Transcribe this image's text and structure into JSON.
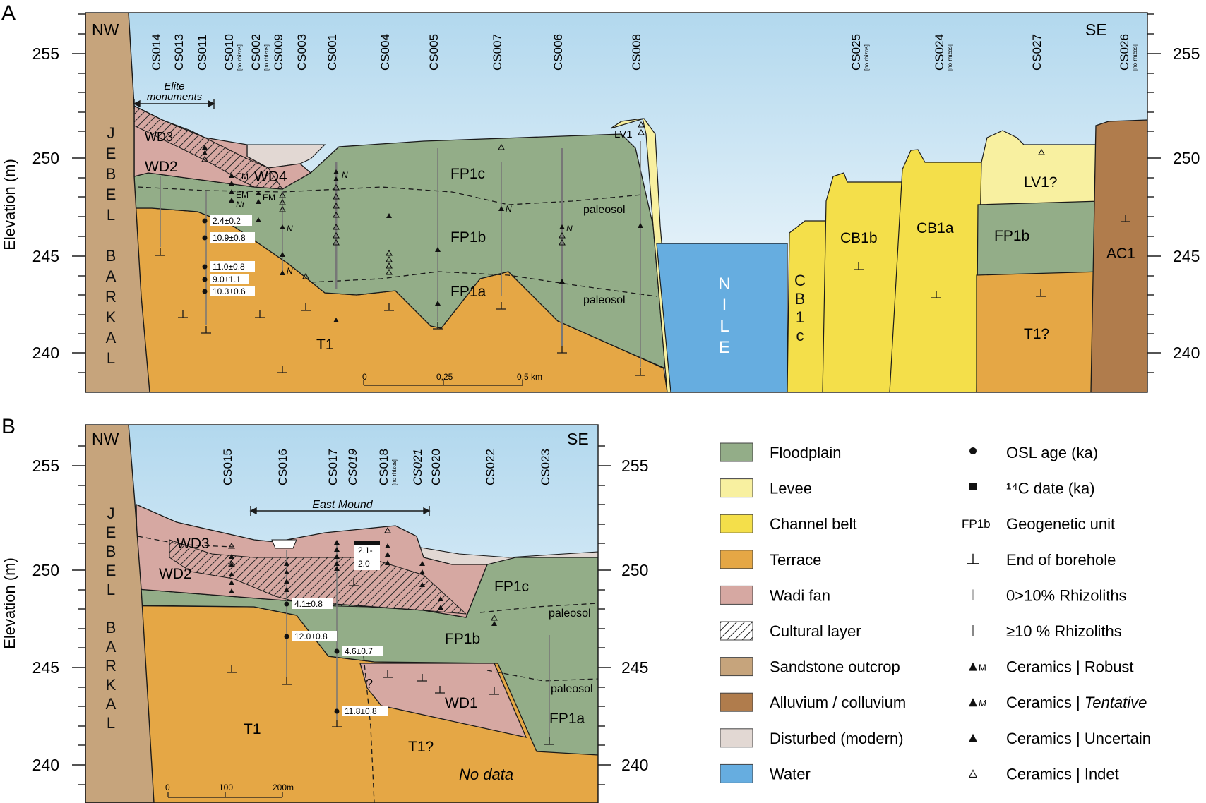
{
  "panel_a": {
    "letter": "A",
    "nw": "NW",
    "se": "SE",
    "y_axis_label": "Elevation (m)",
    "ticks": [
      "255",
      "250",
      "245",
      "240"
    ],
    "boreholes": [
      {
        "id": "CS014",
        "note": ""
      },
      {
        "id": "CS013",
        "note": ""
      },
      {
        "id": "CS011",
        "note": ""
      },
      {
        "id": "CS010",
        "note": "[no rhizos]"
      },
      {
        "id": "CS002",
        "note": "[no rhizos]"
      },
      {
        "id": "CS009",
        "note": ""
      },
      {
        "id": "CS003",
        "note": ""
      },
      {
        "id": "CS001",
        "note": ""
      },
      {
        "id": "CS004",
        "note": ""
      },
      {
        "id": "CS005",
        "note": ""
      },
      {
        "id": "CS007",
        "note": ""
      },
      {
        "id": "CS006",
        "note": ""
      },
      {
        "id": "CS008",
        "note": ""
      },
      {
        "id": "CS025",
        "note": "[no rhizos]"
      },
      {
        "id": "CS024",
        "note": "[no rhizos]"
      },
      {
        "id": "CS027",
        "note": ""
      },
      {
        "id": "CS026",
        "note": "[no rhizos]"
      }
    ],
    "jebel": [
      "J",
      "E",
      "B",
      "E",
      "L",
      "",
      "B",
      "A",
      "R",
      "K",
      "A",
      "L"
    ],
    "nile": [
      "N",
      "I",
      "L",
      "E"
    ],
    "cb1c": [
      "C",
      "B",
      "1",
      "c"
    ],
    "units": {
      "wd3": "WD3",
      "wd2": "WD2",
      "wd4": "WD4",
      "fp1c": "FP1c",
      "fp1b": "FP1b",
      "fp1a": "FP1a",
      "t1": "T1",
      "lv1": "LV1",
      "cb1b": "CB1b",
      "cb1a": "CB1a",
      "fp1b_e": "FP1b",
      "lv1q": "LV1?",
      "t1q": "T1?",
      "ac1": "AC1"
    },
    "paleosol_1": "paleosol",
    "paleosol_2": "paleosol",
    "elite": [
      "Elite",
      "monuments"
    ],
    "osl": [
      "2.4±0.2",
      "10.9±0.8",
      "11.0±0.8",
      "9.0±1.1",
      "10.3±0.6"
    ],
    "scale": {
      "s0": "0",
      "s1": "0,25",
      "s2": "0,5 km"
    },
    "ceramic_codes": {
      "em": "EM",
      "nt": "Nt",
      "n": "N"
    }
  },
  "panel_b": {
    "letter": "B",
    "nw": "NW",
    "se": "SE",
    "y_axis_label": "Elevation (m)",
    "ticks": [
      "255",
      "250",
      "245",
      "240"
    ],
    "boreholes": [
      {
        "id": "CS015",
        "note": ""
      },
      {
        "id": "CS016",
        "note": ""
      },
      {
        "id": "CS017",
        "note": ""
      },
      {
        "id": "CS019",
        "note": ""
      },
      {
        "id": "CS018",
        "note": "[no rhizos]"
      },
      {
        "id": "CS021",
        "note": ""
      },
      {
        "id": "CS020",
        "note": ""
      },
      {
        "id": "CS022",
        "note": ""
      },
      {
        "id": "CS023",
        "note": ""
      }
    ],
    "jebel": [
      "J",
      "E",
      "B",
      "E",
      "L",
      "",
      "B",
      "A",
      "R",
      "K",
      "A",
      "L"
    ],
    "units": {
      "wd3": "WD3",
      "wd2": "WD2",
      "fp1c": "FP1c",
      "fp1b": "FP1b",
      "wd1": "WD1",
      "fp1a": "FP1a",
      "t1": "T1",
      "t1q": "T1?"
    },
    "paleosol_1": "paleosol",
    "paleosol_2": "paleosol",
    "east_mound": "East Mound",
    "osl": [
      "4.1±0.8",
      "12.0±0.8",
      "4.6±0.7",
      "11.8±0.8"
    ],
    "c14": [
      "2.1-",
      "2.0"
    ],
    "question": "?",
    "no_data": "No data",
    "scale": {
      "s0": "0",
      "s1": "100",
      "s2": "200m"
    }
  },
  "legend": {
    "left": [
      {
        "label": "Floodplain",
        "color": "#93ad88"
      },
      {
        "label": "Levee",
        "color": "#f8f0a0"
      },
      {
        "label": "Channel belt",
        "color": "#f4df4a"
      },
      {
        "label": "Terrace",
        "color": "#e5a745"
      },
      {
        "label": "Wadi fan",
        "color": "#d6a8a2"
      },
      {
        "label": "Cultural layer",
        "color": "#ffffff"
      },
      {
        "label": "Sandstone outcrop",
        "color": "#c6a47c"
      },
      {
        "label": "Alluvium / colluvium",
        "color": "#b07c4c"
      },
      {
        "label": "Disturbed (modern)",
        "color": "#e2d8d3"
      },
      {
        "label": "Water",
        "color": "#66ade0"
      }
    ],
    "right": [
      {
        "symbol": "",
        "label": "OSL age (ka)"
      },
      {
        "symbol": "",
        "label": "¹⁴C date (ka)"
      },
      {
        "symbol": "FP1b",
        "label": "Geogenetic unit"
      },
      {
        "symbol": "",
        "label": "End of borehole"
      },
      {
        "symbol": "",
        "label": "0>10% Rhizoliths"
      },
      {
        "symbol": "",
        "label": "≥10 % Rhizoliths"
      },
      {
        "symbol": "M",
        "label": "Ceramics | Robust"
      },
      {
        "symbol": "M",
        "label": "Ceramics | ",
        "label_italic": "Tentative"
      },
      {
        "symbol": "",
        "label": "Ceramics | Uncertain"
      },
      {
        "symbol": "",
        "label": "Ceramics | Indet"
      }
    ]
  },
  "colors": {
    "floodplain": "#93ad88",
    "levee": "#f8f0a0",
    "channel": "#f4df4a",
    "terrace": "#e5a745",
    "wadi": "#d6a8a2",
    "sandstone": "#c6a47c",
    "alluvium": "#b07c4c",
    "disturbed": "#e2d8d3",
    "water": "#66ade0"
  }
}
